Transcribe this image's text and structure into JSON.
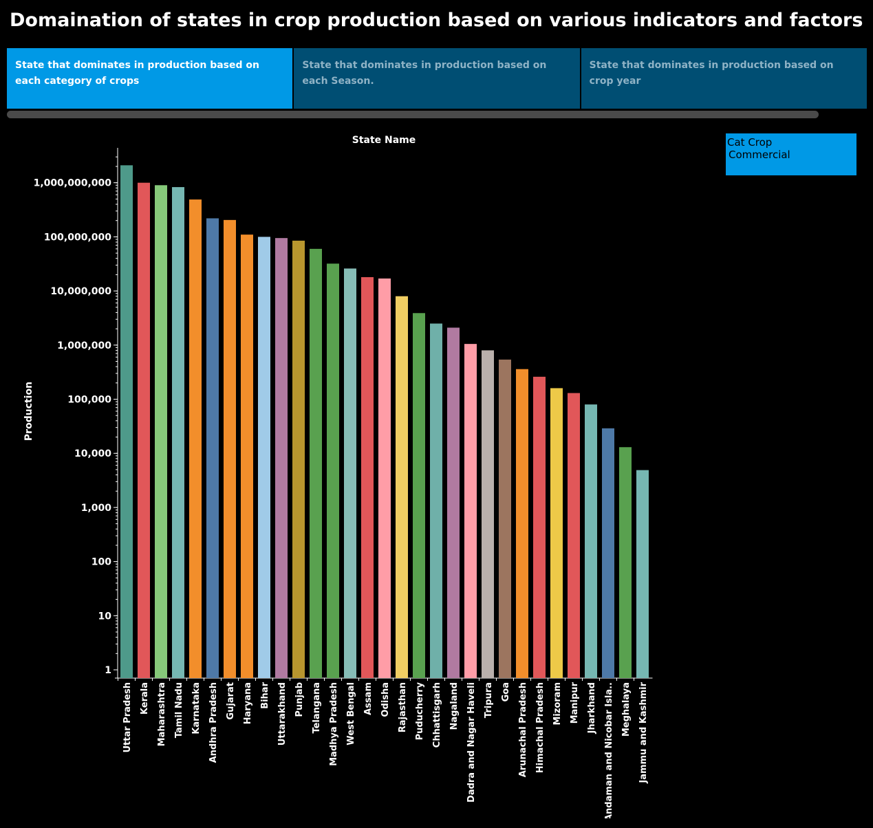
{
  "title": "Domaination of states in crop production based on various indicators and factors",
  "tabs": [
    {
      "label": "State that dominates in production based on each category of crops",
      "active": true
    },
    {
      "label": "State that dominates in production based on each Season.",
      "active": false
    },
    {
      "label": "State that dominates in production based on crop year",
      "active": false
    }
  ],
  "legend": {
    "title": "Cat Crop",
    "value": "Commercial"
  },
  "chart_data": {
    "type": "bar",
    "scale": "log",
    "title": "State Name",
    "xlabel": "State Name",
    "ylabel": "Production",
    "ylim": [
      1,
      3000000000
    ],
    "yticks": [
      1,
      10,
      100,
      1000,
      10000,
      100000,
      1000000,
      10000000,
      100000000,
      1000000000
    ],
    "ytick_labels": [
      "1",
      "10",
      "100",
      "1,000",
      "10,000",
      "100,000",
      "1,000,000",
      "10,000,000",
      "100,000,000",
      "1,000,000,000"
    ],
    "categories": [
      "Uttar Pradesh",
      "Kerala",
      "Maharashtra",
      "Tamil Nadu",
      "Karnataka",
      "Andhra Pradesh",
      "Gujarat",
      "Haryana",
      "Bihar",
      "Uttarakhand",
      "Punjab",
      "Telangana",
      "Madhya Pradesh",
      "West Bengal",
      "Assam",
      "Odisha",
      "Rajasthan",
      "Puducherry",
      "Chhattisgarh",
      "Nagaland",
      "Dadra and Nagar Haveli",
      "Tripura",
      "Goa",
      "Arunachal Pradesh",
      "Himachal Pradesh",
      "Mizoram",
      "Manipur",
      "Jharkhand",
      "Andaman and Nicobar Isla..",
      "Meghalaya",
      "Jammu and Kashmir"
    ],
    "values": [
      2100000000,
      1000000000,
      900000000,
      830000000,
      490000000,
      220000000,
      205000000,
      110000000,
      100000000,
      95000000,
      85000000,
      60000000,
      32000000,
      26000000,
      18000000,
      17000000,
      8000000,
      3900000,
      2500000,
      2100000,
      1050000,
      800000,
      540000,
      360000,
      260000,
      160000,
      130000,
      80000,
      29000,
      13000,
      4900
    ],
    "colors": [
      "#4e9a8a",
      "#e15759",
      "#86c97a",
      "#76b7b2",
      "#f28e2b",
      "#4e79a7",
      "#f28e2b",
      "#f28e2b",
      "#a0cbe8",
      "#b07aa1",
      "#b8962e",
      "#59a14f",
      "#59a14f",
      "#86bcb6",
      "#e15759",
      "#ff9da7",
      "#f1ce63",
      "#59a14f",
      "#6fb0a9",
      "#b07aa1",
      "#ff9da7",
      "#bab0ac",
      "#9c755f",
      "#f28e2b",
      "#e15759",
      "#edc948",
      "#e15759",
      "#76b7b2",
      "#4e79a7",
      "#59a14f",
      "#76b7b2"
    ]
  }
}
